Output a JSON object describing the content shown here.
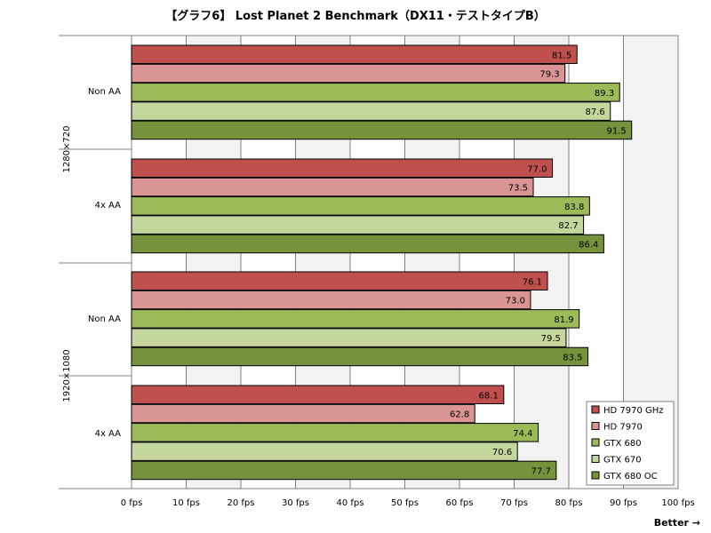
{
  "chart_data": {
    "type": "bar",
    "orientation": "horizontal",
    "title": "【グラフ6】 Lost Planet 2 Benchmark（DX11・テストタイプB）",
    "footer_label": "Better →",
    "xlim": [
      0,
      100
    ],
    "x_ticks": [
      0,
      10,
      20,
      30,
      40,
      50,
      60,
      70,
      80,
      90,
      100
    ],
    "x_tick_labels": [
      "0 fps",
      "10 fps",
      "20 fps",
      "30 fps",
      "40 fps",
      "50 fps",
      "60 fps",
      "70 fps",
      "80 fps",
      "90 fps",
      "100 fps"
    ],
    "grid": true,
    "legend_position": "bottom-right",
    "series": [
      {
        "name": "HD 7970 GHz",
        "color": "#c0504d",
        "values": [
          81.5,
          77.0,
          76.1,
          68.1
        ]
      },
      {
        "name": "HD 7970",
        "color": "#d99594",
        "values": [
          79.3,
          73.5,
          73.0,
          62.8
        ]
      },
      {
        "name": "GTX 680",
        "color": "#9bbb59",
        "values": [
          89.3,
          83.8,
          81.9,
          74.4
        ]
      },
      {
        "name": "GTX 670",
        "color": "#c3d69b",
        "values": [
          87.6,
          82.7,
          79.5,
          70.6
        ]
      },
      {
        "name": "GTX 680 OC",
        "color": "#76923c",
        "values": [
          91.5,
          86.4,
          83.5,
          77.7
        ]
      }
    ],
    "groups": [
      {
        "resolution": "1280×720",
        "categories": [
          "Non AA",
          "4x AA"
        ]
      },
      {
        "resolution": "1920×1080",
        "categories": [
          "Non AA",
          "4x AA"
        ]
      }
    ]
  }
}
